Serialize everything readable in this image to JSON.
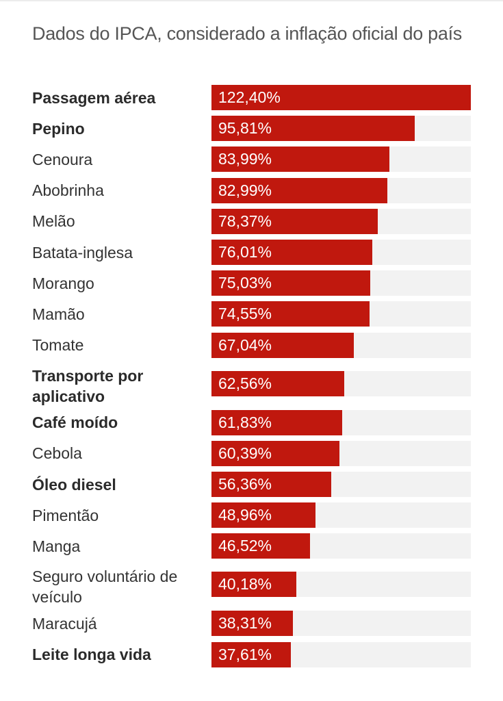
{
  "chart_data": {
    "type": "bar",
    "orientation": "horizontal",
    "title": "Dados do IPCA, considerado a inflação oficial do país",
    "xlabel": "",
    "ylabel": "",
    "xlim": [
      0,
      122.4
    ],
    "grid": false,
    "legend": "none",
    "bar_color": "#c0180e",
    "track_color": "#f2f2f2",
    "categories": [
      "Passagem aérea",
      "Pepino",
      "Cenoura",
      "Abobrinha",
      "Melão",
      "Batata-inglesa",
      "Morango",
      "Mamão",
      "Tomate",
      "Transporte por aplicativo",
      "Café moído",
      "Cebola",
      "Óleo diesel",
      "Pimentão",
      "Manga",
      "Seguro voluntário de veículo",
      "Maracujá",
      "Leite longa vida"
    ],
    "values": [
      122.4,
      95.81,
      83.99,
      82.99,
      78.37,
      76.01,
      75.03,
      74.55,
      67.04,
      62.56,
      61.83,
      60.39,
      56.36,
      48.96,
      46.52,
      40.18,
      38.31,
      37.61
    ],
    "data_labels": [
      "122,40%",
      "95,81%",
      "83,99%",
      "82,99%",
      "78,37%",
      "76,01%",
      "75,03%",
      "74,55%",
      "67,04%",
      "62,56%",
      "61,83%",
      "60,39%",
      "56,36%",
      "48,96%",
      "46,52%",
      "40,18%",
      "38,31%",
      "37,61%"
    ],
    "label_lines": [
      [
        "Passagem aérea"
      ],
      [
        "Pepino"
      ],
      [
        "Cenoura"
      ],
      [
        "Abobrinha"
      ],
      [
        "Melão"
      ],
      [
        "Batata-inglesa"
      ],
      [
        "Morango"
      ],
      [
        "Mamão"
      ],
      [
        "Tomate"
      ],
      [
        "Transporte por",
        "aplicativo"
      ],
      [
        "Café moído"
      ],
      [
        "Cebola"
      ],
      [
        "Óleo diesel"
      ],
      [
        "Pimentão"
      ],
      [
        "Manga"
      ],
      [
        "Seguro voluntário de",
        "veículo"
      ],
      [
        "Maracujá"
      ],
      [
        "Leite longa vida"
      ]
    ],
    "bold": [
      true,
      true,
      false,
      false,
      false,
      false,
      false,
      false,
      false,
      true,
      true,
      false,
      true,
      false,
      false,
      false,
      false,
      true
    ]
  }
}
